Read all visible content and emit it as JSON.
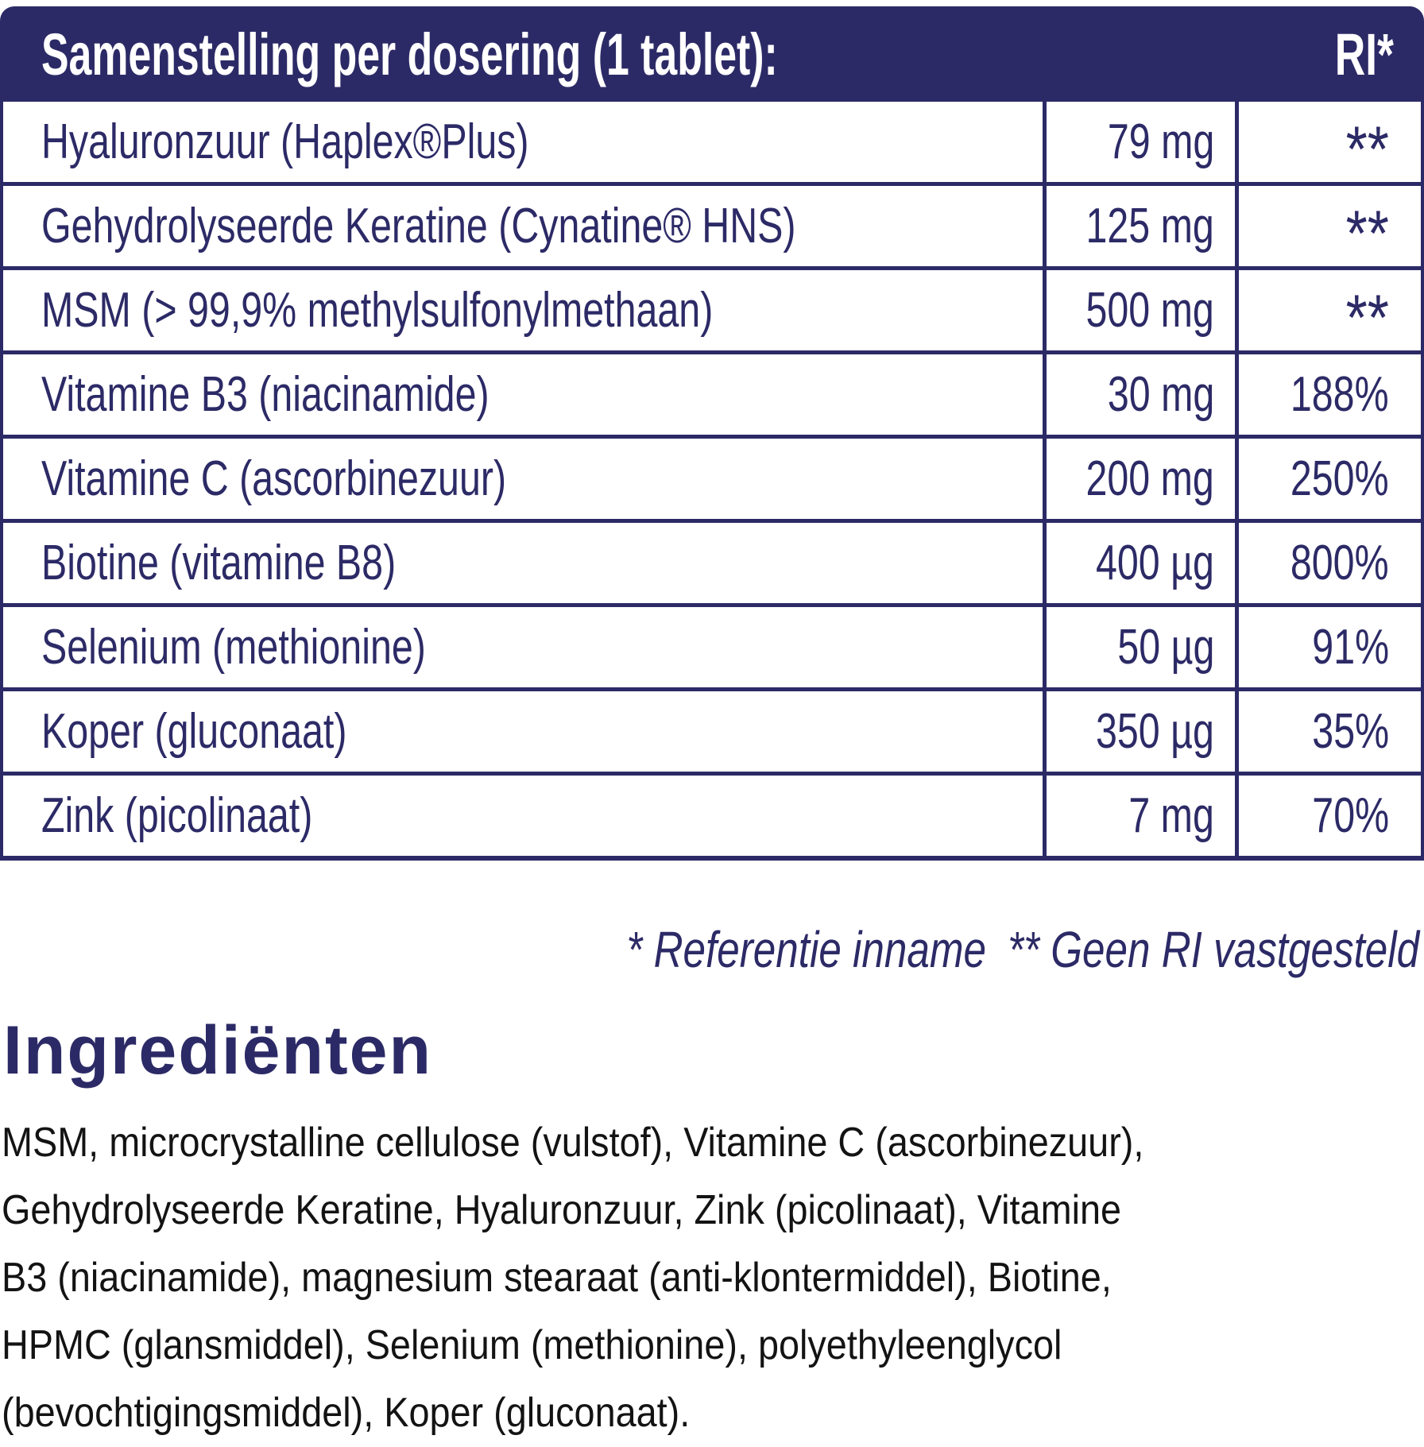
{
  "table": {
    "header": {
      "title": "Samenstelling per dosering (1 tablet):",
      "ri_label": "RI*"
    },
    "columns": [
      "name",
      "amount",
      "ri"
    ],
    "rows": [
      {
        "name": "Hyaluronzuur (Haplex®Plus)",
        "amount": "79 mg",
        "ri": "**"
      },
      {
        "name": "Gehydrolyseerde Keratine (Cynatine® HNS)",
        "amount": "125 mg",
        "ri": "**"
      },
      {
        "name": "MSM (> 99,9% methylsulfonylmethaan)",
        "amount": "500 mg",
        "ri": "**"
      },
      {
        "name": "Vitamine B3 (niacinamide)",
        "amount": "30 mg",
        "ri": "188%"
      },
      {
        "name": "Vitamine C (ascorbinezuur)",
        "amount": "200 mg",
        "ri": "250%"
      },
      {
        "name": "Biotine (vitamine B8)",
        "amount": "400 µg",
        "ri": "800%"
      },
      {
        "name": "Selenium (methionine)",
        "amount": "50 µg",
        "ri": "91%"
      },
      {
        "name": "Koper (gluconaat)",
        "amount": "350 µg",
        "ri": "35%"
      },
      {
        "name": "Zink (picolinaat)",
        "amount": "7 mg",
        "ri": "70%"
      }
    ]
  },
  "footnote": {
    "reference_intake": "* Referentie inname",
    "no_ri_established": "** Geen RI vastgesteld"
  },
  "ingredients": {
    "heading": "Ingrediënten",
    "lines": [
      "MSM, microcrystalline cellulose (vulstof), Vitamine C (ascorbinezuur),",
      "Gehydrolyseerde Keratine, Hyaluronzuur, Zink (picolinaat), Vitamine",
      "B3 (niacinamide), magnesium stearaat (anti-klontermiddel), Biotine,",
      "HPMC (glansmiddel), Selenium (methionine), polyethyleenglycol",
      "(bevochtigingsmiddel), Koper (gluconaat)."
    ]
  },
  "colors": {
    "navy": "#2c2a66",
    "text_black": "#131313",
    "background": "#ffffff"
  }
}
